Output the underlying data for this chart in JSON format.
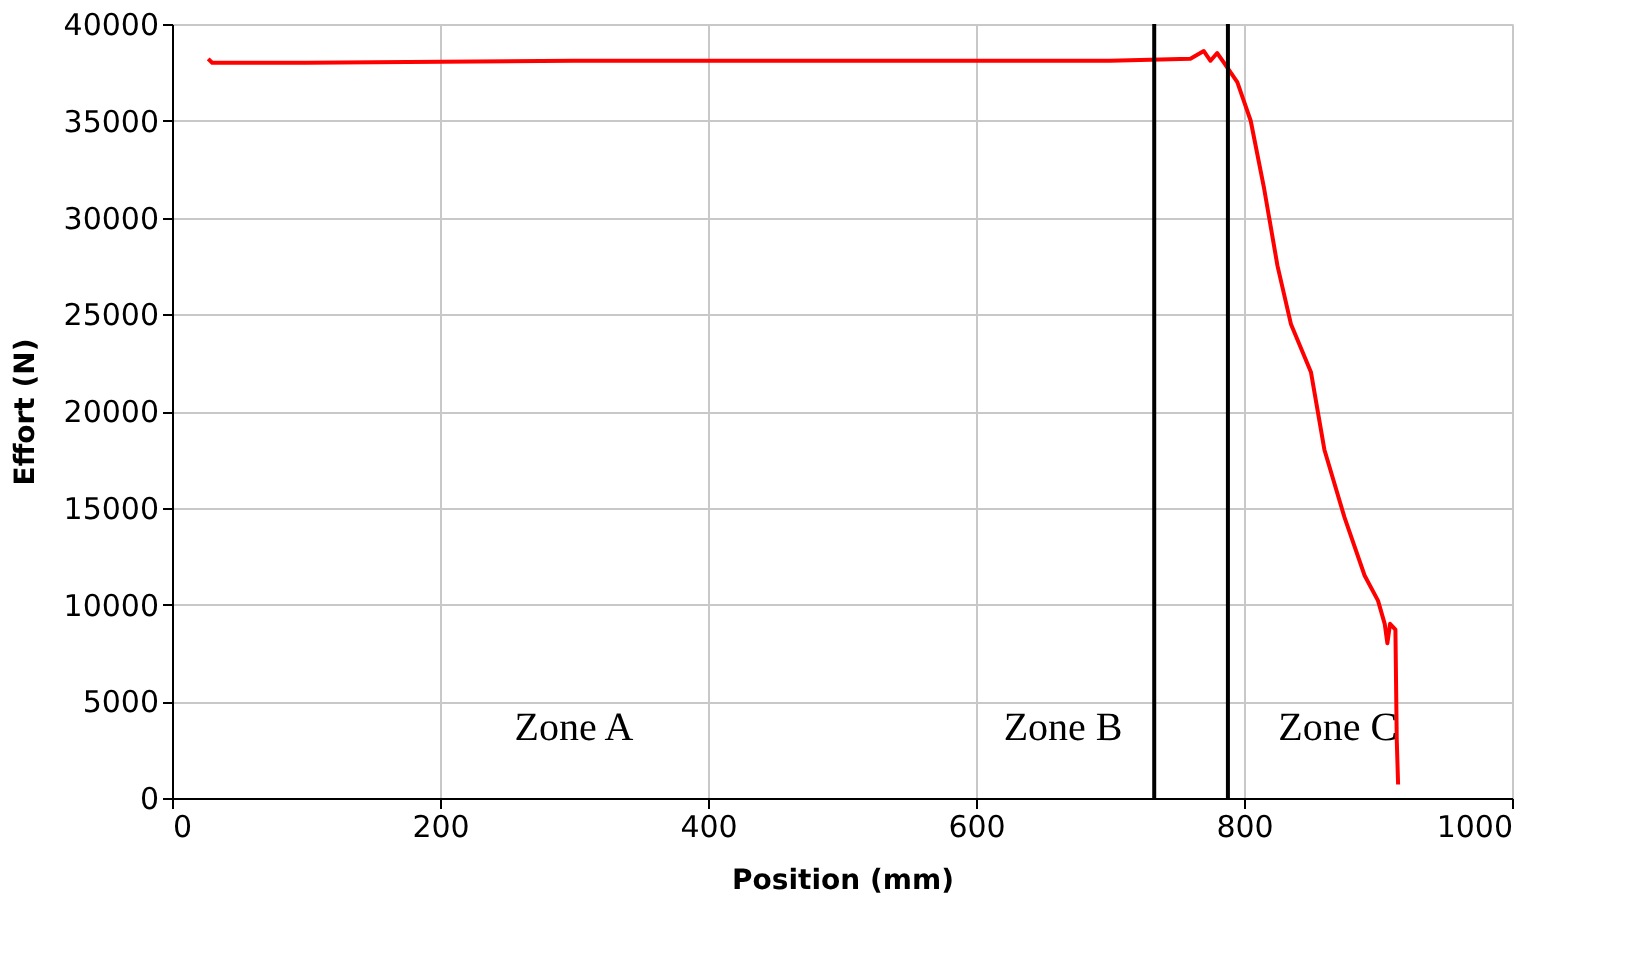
{
  "chart_data": {
    "type": "line",
    "xlabel": "Position (mm)",
    "ylabel": "Effort (N)",
    "xlim": [
      0,
      1000
    ],
    "xticks": [
      0,
      200,
      400,
      600,
      800,
      1000
    ],
    "ylim": [
      0,
      40000
    ],
    "yticks": [
      0,
      5000,
      10000,
      15000,
      20000,
      25000,
      30000,
      35000,
      40000
    ],
    "grid": true,
    "marker": "none",
    "line_style": "solid",
    "series": [
      {
        "color": "#ff0000",
        "x": [
          27,
          30,
          100,
          300,
          500,
          700,
          760,
          770,
          775,
          780,
          785,
          795,
          805,
          815,
          825,
          835,
          850,
          860,
          875,
          890,
          900,
          905,
          907,
          909,
          913,
          914,
          915
        ],
        "values": [
          38200,
          38000,
          38000,
          38100,
          38100,
          38100,
          38200,
          38600,
          38100,
          38500,
          38000,
          37000,
          35000,
          31500,
          27500,
          24500,
          22000,
          18000,
          14500,
          11500,
          10200,
          9000,
          8000,
          9000,
          8700,
          3000,
          700
        ]
      }
    ],
    "ref_lines": [
      {
        "axis": "x",
        "value": 733,
        "color": "#000000"
      },
      {
        "axis": "x",
        "value": 788,
        "color": "#000000"
      }
    ],
    "annotations": [
      "Zone A",
      "Zone B",
      "Zone C"
    ]
  }
}
